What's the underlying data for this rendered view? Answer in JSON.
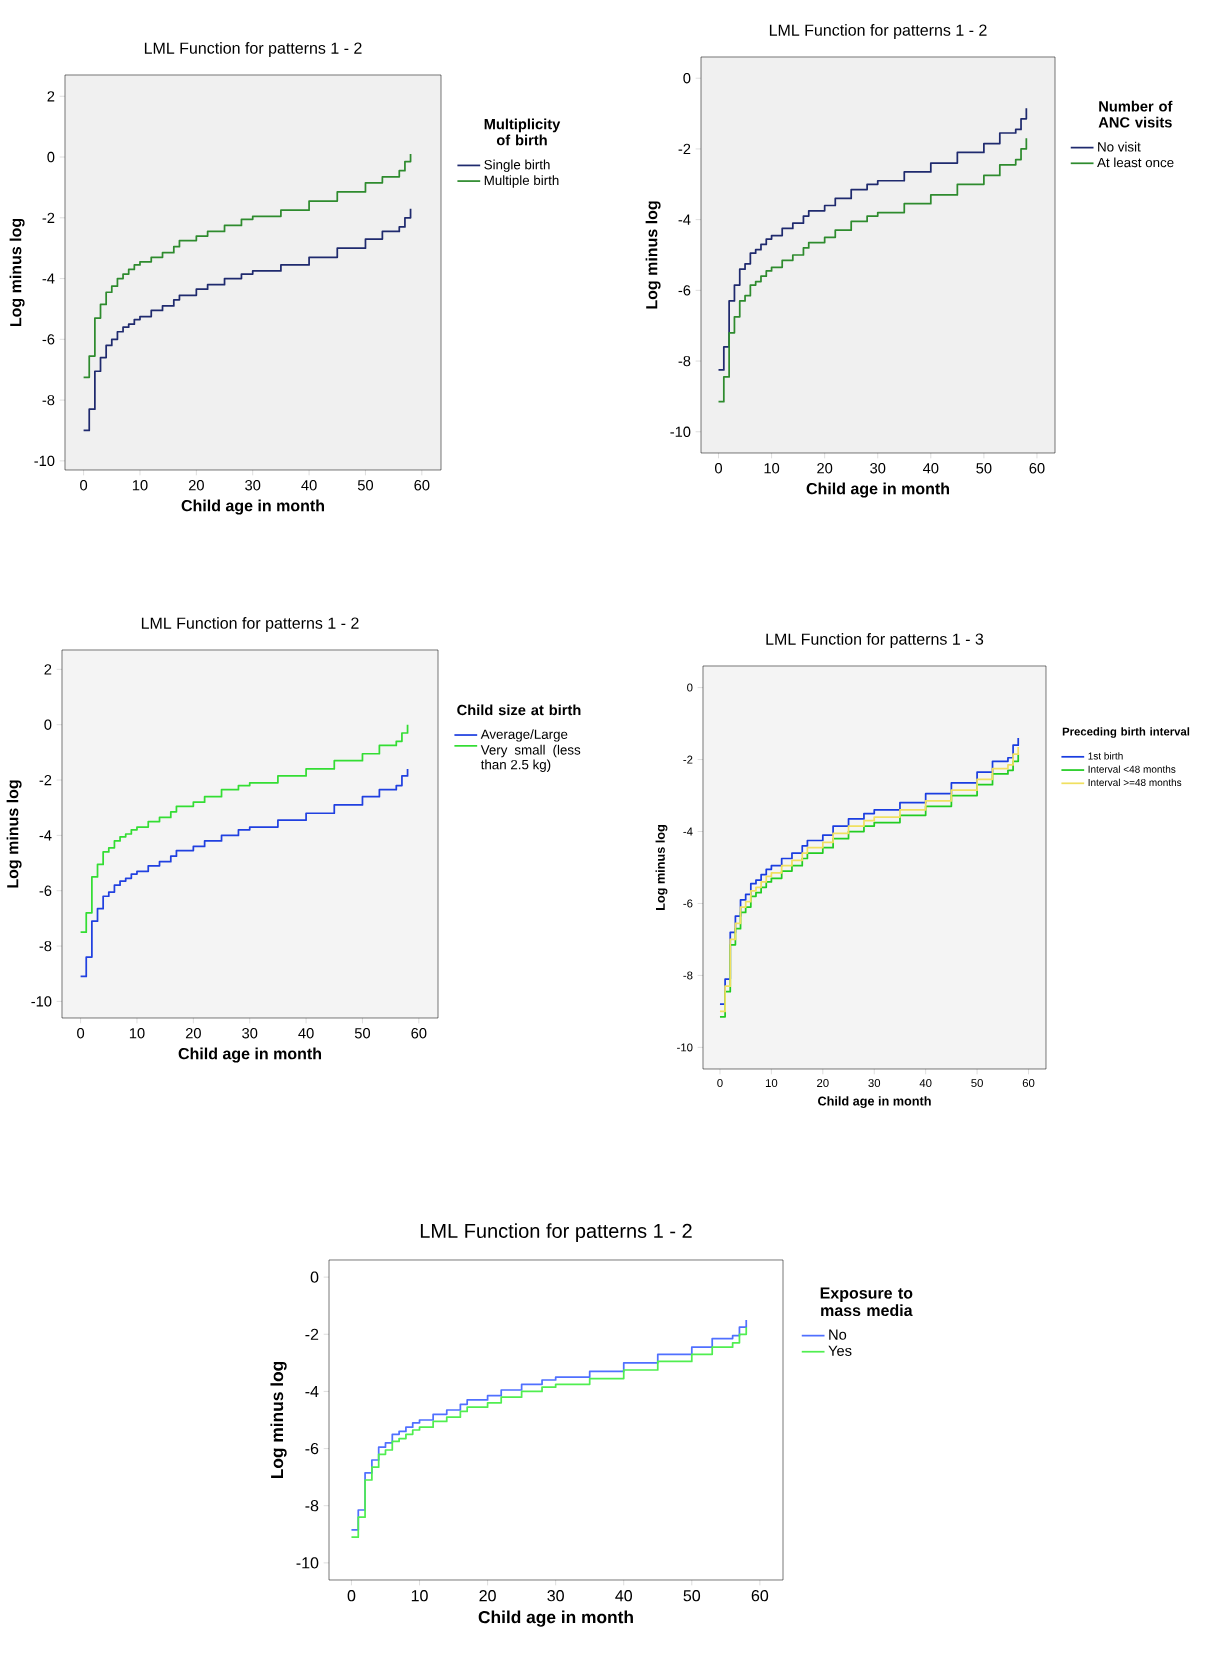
{
  "chart_data": [
    {
      "type": "step",
      "title": "LML Function for patterns 1 - 2",
      "xlabel": "Child age in month",
      "ylabel": "Log minus log",
      "legend_title": "Multiplicity of birth",
      "legend": "right",
      "x": [
        0,
        1,
        2,
        3,
        4,
        5,
        6,
        7,
        8,
        9,
        10,
        12,
        14,
        16,
        17,
        20,
        22,
        25,
        28,
        30,
        35,
        40,
        45,
        50,
        53,
        56,
        57,
        58
      ],
      "xlim": [
        -3.3,
        63.4
      ],
      "ylim": [
        -10.3,
        2.7
      ],
      "xticks": [
        0,
        10,
        20,
        30,
        40,
        50,
        60
      ],
      "yticks": [
        -10,
        -8,
        -6,
        -4,
        -2,
        0,
        2
      ],
      "series": [
        {
          "name": "Single birth",
          "color": "#1f2a6e",
          "values": [
            -9.0,
            -8.3,
            -7.05,
            -6.6,
            -6.2,
            -6.0,
            -5.75,
            -5.6,
            -5.5,
            -5.35,
            -5.25,
            -5.05,
            -4.9,
            -4.7,
            -4.55,
            -4.35,
            -4.2,
            -4.0,
            -3.85,
            -3.75,
            -3.55,
            -3.3,
            -3.0,
            -2.7,
            -2.45,
            -2.3,
            -2.0,
            -1.7
          ]
        },
        {
          "name": "Multiple birth",
          "color": "#2e8b2e",
          "values": [
            -7.25,
            -6.55,
            -5.3,
            -4.85,
            -4.45,
            -4.25,
            -4.0,
            -3.85,
            -3.7,
            -3.55,
            -3.45,
            -3.3,
            -3.15,
            -2.95,
            -2.75,
            -2.6,
            -2.45,
            -2.25,
            -2.05,
            -1.95,
            -1.75,
            -1.45,
            -1.15,
            -0.85,
            -0.65,
            -0.45,
            -0.15,
            0.1
          ]
        }
      ]
    },
    {
      "type": "step",
      "title": "LML Function for patterns 1 - 2",
      "xlabel": "Child age in month",
      "ylabel": "Log minus log",
      "legend_title": "Number of ANC visits",
      "legend": "right",
      "x": [
        0,
        1,
        2,
        3,
        4,
        5,
        6,
        7,
        8,
        9,
        10,
        12,
        14,
        16,
        17,
        20,
        22,
        25,
        28,
        30,
        35,
        40,
        45,
        50,
        53,
        56,
        57,
        58
      ],
      "xlim": [
        -3.3,
        63.4
      ],
      "ylim": [
        -10.6,
        0.6
      ],
      "xticks": [
        0,
        10,
        20,
        30,
        40,
        50,
        60
      ],
      "yticks": [
        -10,
        -8,
        -6,
        -4,
        -2,
        0
      ],
      "series": [
        {
          "name": "No visit",
          "color": "#1f2a6e",
          "values": [
            -8.25,
            -7.6,
            -6.3,
            -5.85,
            -5.4,
            -5.25,
            -4.95,
            -4.85,
            -4.7,
            -4.55,
            -4.45,
            -4.25,
            -4.1,
            -3.9,
            -3.75,
            -3.6,
            -3.4,
            -3.15,
            -3.0,
            -2.9,
            -2.65,
            -2.4,
            -2.1,
            -1.85,
            -1.55,
            -1.45,
            -1.15,
            -0.85
          ]
        },
        {
          "name": "At least once",
          "color": "#2e8b2e",
          "values": [
            -9.15,
            -8.45,
            -7.2,
            -6.75,
            -6.3,
            -6.15,
            -5.85,
            -5.75,
            -5.6,
            -5.45,
            -5.35,
            -5.15,
            -5.0,
            -4.8,
            -4.65,
            -4.5,
            -4.3,
            -4.05,
            -3.9,
            -3.8,
            -3.55,
            -3.3,
            -3.0,
            -2.75,
            -2.45,
            -2.3,
            -2.0,
            -1.7
          ]
        }
      ]
    },
    {
      "type": "step",
      "title": "LML Function for patterns 1 - 2",
      "xlabel": "Child age in month",
      "ylabel": "Log minus log",
      "legend_title": "Child size at birth",
      "legend": "right",
      "x": [
        0,
        1,
        2,
        3,
        4,
        5,
        6,
        7,
        8,
        9,
        10,
        12,
        14,
        16,
        17,
        20,
        22,
        25,
        28,
        30,
        35,
        40,
        45,
        50,
        53,
        56,
        57,
        58
      ],
      "xlim": [
        -3.3,
        63.4
      ],
      "ylim": [
        -10.6,
        2.7
      ],
      "xticks": [
        0,
        10,
        20,
        30,
        40,
        50,
        60
      ],
      "yticks": [
        -10,
        -8,
        -6,
        -4,
        -2,
        0,
        2
      ],
      "series": [
        {
          "name": "Average/Large",
          "color": "#2040e0",
          "values": [
            -9.1,
            -8.4,
            -7.1,
            -6.65,
            -6.2,
            -6.05,
            -5.8,
            -5.65,
            -5.55,
            -5.4,
            -5.3,
            -5.1,
            -4.95,
            -4.75,
            -4.55,
            -4.4,
            -4.2,
            -4.0,
            -3.8,
            -3.7,
            -3.45,
            -3.2,
            -2.9,
            -2.6,
            -2.35,
            -2.2,
            -1.85,
            -1.6
          ]
        },
        {
          "name": "Very small (less than 2.5 kg)",
          "color": "#33dd33",
          "values": [
            -7.5,
            -6.8,
            -5.5,
            -5.05,
            -4.6,
            -4.45,
            -4.2,
            -4.05,
            -3.95,
            -3.8,
            -3.7,
            -3.5,
            -3.35,
            -3.15,
            -2.95,
            -2.8,
            -2.6,
            -2.35,
            -2.2,
            -2.1,
            -1.85,
            -1.6,
            -1.3,
            -1.05,
            -0.75,
            -0.6,
            -0.3,
            0.0
          ]
        }
      ]
    },
    {
      "type": "step",
      "title": "LML Function for patterns 1 - 3",
      "xlabel": "Child age in month",
      "ylabel": "Log minus log",
      "legend_title": "Preceding birth interval",
      "legend": "right",
      "x": [
        0,
        1,
        2,
        3,
        4,
        5,
        6,
        7,
        8,
        9,
        10,
        12,
        14,
        16,
        17,
        20,
        22,
        25,
        28,
        30,
        35,
        40,
        45,
        50,
        53,
        56,
        57,
        58
      ],
      "xlim": [
        -3.3,
        63.4
      ],
      "ylim": [
        -10.6,
        0.6
      ],
      "xticks": [
        0,
        10,
        20,
        30,
        40,
        50,
        60
      ],
      "yticks": [
        -10,
        -8,
        -6,
        -4,
        -2,
        0
      ],
      "series": [
        {
          "name": "1st birth",
          "color": "#1a3de0",
          "values": [
            -8.8,
            -8.1,
            -6.8,
            -6.35,
            -5.9,
            -5.75,
            -5.45,
            -5.35,
            -5.2,
            -5.05,
            -4.95,
            -4.75,
            -4.6,
            -4.4,
            -4.25,
            -4.1,
            -3.85,
            -3.65,
            -3.5,
            -3.4,
            -3.2,
            -2.95,
            -2.65,
            -2.35,
            -2.05,
            -1.95,
            -1.6,
            -1.4
          ]
        },
        {
          "name": "Interval <48 months",
          "color": "#22cc22",
          "values": [
            -9.15,
            -8.45,
            -7.15,
            -6.7,
            -6.25,
            -6.1,
            -5.8,
            -5.7,
            -5.55,
            -5.4,
            -5.3,
            -5.1,
            -4.95,
            -4.75,
            -4.6,
            -4.45,
            -4.2,
            -4.0,
            -3.85,
            -3.75,
            -3.55,
            -3.3,
            -3.0,
            -2.7,
            -2.4,
            -2.3,
            -2.05,
            -1.85
          ]
        },
        {
          "name": "Interval >=48 months",
          "color": "#f0e060",
          "values": [
            -9.0,
            -8.3,
            -7.0,
            -6.55,
            -6.1,
            -5.95,
            -5.65,
            -5.55,
            -5.4,
            -5.25,
            -5.15,
            -4.95,
            -4.8,
            -4.6,
            -4.45,
            -4.3,
            -4.05,
            -3.85,
            -3.7,
            -3.6,
            -3.4,
            -3.15,
            -2.85,
            -2.55,
            -2.25,
            -2.15,
            -1.85,
            -1.65
          ]
        }
      ]
    },
    {
      "type": "step",
      "title": "LML Function for patterns 1 - 2",
      "xlabel": "Child age in month",
      "ylabel": "Log minus log",
      "legend_title": "Exposure to mass media",
      "legend": "right",
      "x": [
        0,
        1,
        2,
        3,
        4,
        5,
        6,
        7,
        8,
        9,
        10,
        12,
        14,
        16,
        17,
        20,
        22,
        25,
        28,
        30,
        35,
        40,
        45,
        50,
        53,
        56,
        57,
        58
      ],
      "xlim": [
        -3.3,
        63.4
      ],
      "ylim": [
        -10.6,
        0.6
      ],
      "xticks": [
        0,
        10,
        20,
        30,
        40,
        50,
        60
      ],
      "yticks": [
        -10,
        -8,
        -6,
        -4,
        -2,
        0
      ],
      "series": [
        {
          "name": "No",
          "color": "#5070ff",
          "values": [
            -8.85,
            -8.15,
            -6.85,
            -6.4,
            -5.95,
            -5.8,
            -5.5,
            -5.4,
            -5.25,
            -5.1,
            -5.0,
            -4.8,
            -4.65,
            -4.45,
            -4.3,
            -4.15,
            -3.95,
            -3.75,
            -3.6,
            -3.5,
            -3.3,
            -3.0,
            -2.7,
            -2.45,
            -2.15,
            -2.05,
            -1.75,
            -1.5
          ]
        },
        {
          "name": "Yes",
          "color": "#50ee50",
          "values": [
            -9.1,
            -8.4,
            -7.1,
            -6.65,
            -6.2,
            -6.05,
            -5.75,
            -5.65,
            -5.5,
            -5.35,
            -5.25,
            -5.05,
            -4.9,
            -4.7,
            -4.55,
            -4.4,
            -4.2,
            -4.0,
            -3.85,
            -3.75,
            -3.55,
            -3.25,
            -2.95,
            -2.7,
            -2.45,
            -2.3,
            -2.0,
            -1.75
          ]
        }
      ]
    }
  ]
}
